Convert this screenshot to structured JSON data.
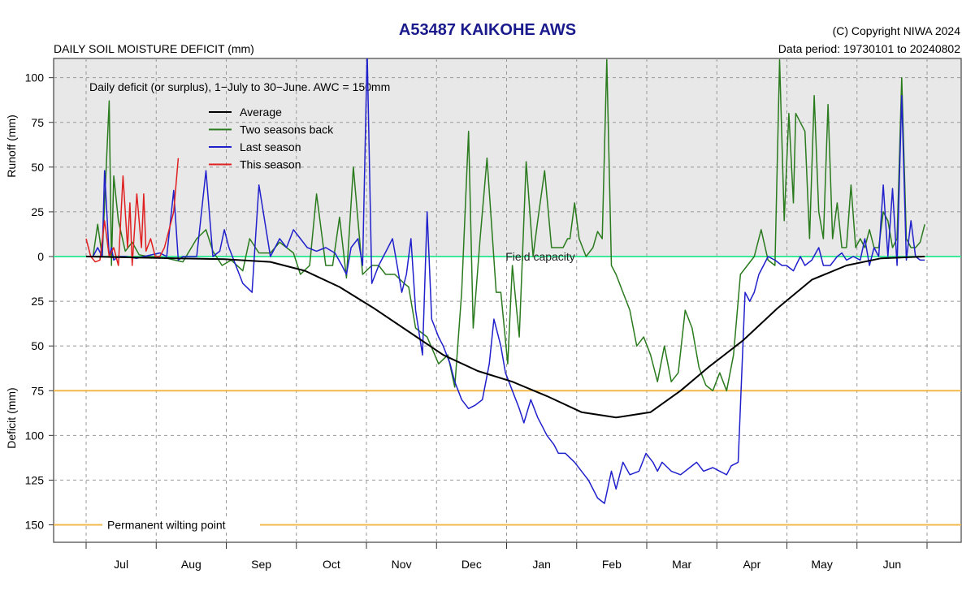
{
  "header": {
    "title": "A53487  KAIKOHE AWS",
    "subtitle": "DAILY SOIL MOISTURE DEFICIT (mm)",
    "copyright": "(C) Copyright NIWA  2024",
    "data_period": "Data period:  19730101  to  20240802"
  },
  "chart_data": {
    "type": "line",
    "note_text": "Daily deficit (or surplus), 1−July to 30−June.  AWC = 150mm",
    "ylabel_top": "Runoff (mm)",
    "ylabel_bottom": "Deficit (mm)",
    "y_axis_inverted": true,
    "ylim": [
      -110,
      160
    ],
    "y_ticks": [
      {
        "value": -100,
        "label": "100"
      },
      {
        "value": -75,
        "label": "75"
      },
      {
        "value": -50,
        "label": "50"
      },
      {
        "value": -25,
        "label": "25"
      },
      {
        "value": 0,
        "label": "0"
      },
      {
        "value": 25,
        "label": "25"
      },
      {
        "value": 50,
        "label": "50"
      },
      {
        "value": 75,
        "label": "75"
      },
      {
        "value": 100,
        "label": "100"
      },
      {
        "value": 125,
        "label": "125"
      },
      {
        "value": 150,
        "label": "150"
      }
    ],
    "x_ticks": [
      "Jul",
      "Aug",
      "Sep",
      "Oct",
      "Nov",
      "Dec",
      "Jan",
      "Feb",
      "Mar",
      "Apr",
      "May",
      "Jun"
    ],
    "xlim": [
      0,
      365
    ],
    "grid": true,
    "legend_position": "top-left",
    "reference_lines": [
      {
        "name": "Field capacity",
        "value": 0,
        "color": "#3ee89a"
      },
      {
        "name": "",
        "value": 75,
        "color": "#f2b84b"
      },
      {
        "name": "Permanent wilting point",
        "value": 150,
        "color": "#f2b84b"
      }
    ],
    "series": [
      {
        "name": "Average",
        "color": "#000000",
        "x": [
          0,
          20,
          40,
          60,
          80,
          95,
          110,
          125,
          140,
          155,
          170,
          185,
          200,
          215,
          230,
          245,
          258,
          270,
          285,
          300,
          315,
          330,
          345,
          364
        ],
        "y": [
          0,
          0.5,
          1,
          1.5,
          3,
          8,
          17,
          29,
          42,
          55,
          64,
          70,
          78,
          87,
          90,
          87,
          75,
          62,
          47,
          29,
          13,
          5,
          1,
          0
        ]
      },
      {
        "name": "Two seasons back",
        "color": "#2a7a1e",
        "x": [
          0,
          3,
          5,
          7,
          10,
          11,
          12,
          14,
          17,
          20,
          23,
          27,
          35,
          42,
          48,
          52,
          55,
          59,
          63,
          68,
          71,
          75,
          80,
          84,
          90,
          93,
          97,
          100,
          104,
          107,
          110,
          113,
          116,
          120,
          124,
          127,
          130,
          134,
          138,
          140,
          143,
          148,
          153,
          157,
          160,
          163,
          166,
          168,
          171,
          174,
          178,
          180,
          183,
          185,
          188,
          191,
          194,
          196,
          199,
          202,
          204,
          207,
          209,
          210,
          212,
          214,
          217,
          220,
          222,
          224,
          226,
          228,
          230,
          233,
          236,
          239,
          242,
          245,
          248,
          251,
          254,
          257,
          260,
          263,
          266,
          269,
          272,
          275,
          278,
          281,
          284,
          287,
          290,
          293,
          296,
          299,
          301,
          303,
          305,
          307,
          308,
          310,
          312,
          314,
          316,
          318,
          320,
          322,
          324,
          326,
          328,
          330,
          332,
          334,
          336,
          338,
          340,
          342,
          344,
          346,
          348,
          350,
          352,
          354,
          356,
          358,
          360,
          362,
          364
        ],
        "y": [
          0,
          0,
          -18,
          0,
          -87,
          5,
          -45,
          -20,
          -3,
          -8,
          -1,
          0,
          1,
          3,
          -10,
          -15,
          -3,
          5,
          2,
          8,
          -10,
          -2,
          -2,
          -8,
          -2,
          10,
          5,
          -35,
          5,
          5,
          -22,
          12,
          -50,
          10,
          5,
          5,
          10,
          10,
          15,
          17,
          40,
          45,
          60,
          55,
          73,
          20,
          -70,
          40,
          -10,
          -55,
          20,
          20,
          60,
          5,
          45,
          -53,
          0,
          -20,
          -48,
          -5,
          -5,
          -5,
          -10,
          -10,
          -30,
          -10,
          0,
          -5,
          -14,
          -10,
          -110,
          5,
          10,
          20,
          30,
          50,
          45,
          55,
          70,
          50,
          70,
          65,
          30,
          40,
          62,
          72,
          75,
          65,
          75,
          55,
          10,
          5,
          0,
          -15,
          2,
          5,
          -110,
          -20,
          -80,
          -30,
          -80,
          -75,
          -70,
          -10,
          -90,
          -25,
          -10,
          -85,
          -10,
          -30,
          -5,
          -5,
          -40,
          -5,
          -10,
          -5,
          -15,
          -5,
          -5,
          -25,
          -20,
          -5,
          -10,
          -100,
          -10,
          -5,
          -5,
          -8,
          -18
        ]
      },
      {
        "name": "Last season",
        "color": "#2020cc",
        "x": [
          0,
          3,
          5,
          7,
          8,
          10,
          11,
          12,
          14,
          17,
          22,
          25,
          32,
          35,
          38,
          40,
          42,
          48,
          52,
          55,
          58,
          60,
          62,
          68,
          72,
          75,
          80,
          84,
          87,
          90,
          93,
          96,
          100,
          104,
          108,
          111,
          113,
          115,
          118,
          120,
          122,
          124,
          127,
          129,
          131,
          133,
          135,
          137,
          139,
          141,
          143,
          146,
          148,
          150,
          153,
          155,
          158,
          160,
          163,
          166,
          169,
          172,
          175,
          177,
          180,
          182,
          185,
          188,
          190,
          193,
          196,
          198,
          200,
          203,
          205,
          208,
          212,
          215,
          218,
          220,
          222,
          225,
          228,
          230,
          233,
          236,
          240,
          243,
          246,
          248,
          250,
          254,
          258,
          262,
          265,
          268,
          272,
          275,
          278,
          280,
          283,
          286,
          288,
          290,
          292,
          294,
          296,
          299,
          302,
          304,
          307,
          310,
          312,
          315,
          318,
          320,
          323,
          326,
          328,
          330,
          333,
          336,
          338,
          340,
          342,
          344,
          346,
          348,
          350,
          352,
          354,
          356,
          358,
          360,
          362,
          364
        ],
        "y": [
          0,
          0,
          -5,
          0,
          -48,
          0,
          -5,
          2,
          0,
          0,
          1,
          0,
          -2,
          0,
          -37,
          2,
          0,
          0,
          -48,
          0,
          -3,
          -15,
          -5,
          15,
          20,
          -40,
          0,
          -10,
          -5,
          -15,
          -10,
          -5,
          -3,
          -5,
          -2,
          5,
          10,
          -5,
          -10,
          5,
          -115,
          15,
          5,
          0,
          -5,
          -10,
          5,
          20,
          10,
          -10,
          30,
          55,
          -25,
          35,
          45,
          50,
          60,
          70,
          80,
          85,
          83,
          80,
          60,
          35,
          50,
          65,
          75,
          85,
          93,
          80,
          90,
          95,
          100,
          105,
          110,
          110,
          115,
          120,
          125,
          130,
          135,
          138,
          120,
          130,
          115,
          122,
          120,
          110,
          115,
          120,
          115,
          120,
          122,
          118,
          115,
          120,
          118,
          120,
          122,
          117,
          115,
          20,
          25,
          20,
          10,
          5,
          0,
          2,
          5,
          5,
          8,
          0,
          5,
          2,
          -5,
          5,
          5,
          0,
          -2,
          2,
          0,
          2,
          -10,
          5,
          -5,
          0,
          -40,
          0,
          -38,
          5,
          -90,
          2,
          -20,
          0,
          2,
          2
        ]
      },
      {
        "name": "This season",
        "color": "#e02020",
        "x": [
          0,
          2,
          4,
          6,
          8,
          10,
          12,
          14,
          16,
          18,
          19,
          20,
          22,
          24,
          25,
          26,
          28,
          30,
          32,
          34,
          36,
          38,
          40
        ],
        "y": [
          -10,
          0,
          3,
          2,
          -20,
          0,
          -5,
          5,
          -45,
          -5,
          -30,
          5,
          -35,
          -5,
          -35,
          -3,
          -10,
          0,
          0,
          -5,
          -15,
          -25,
          -55
        ]
      }
    ]
  }
}
